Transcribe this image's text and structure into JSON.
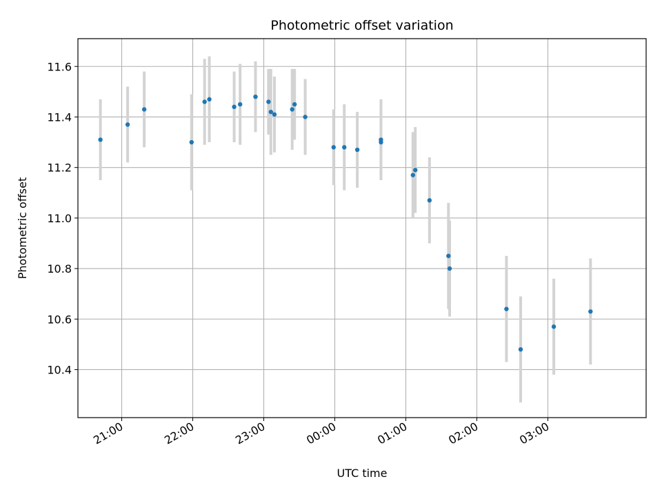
{
  "chart_data": {
    "type": "scatter",
    "title": "Photometric offset variation",
    "xlabel": "UTC time",
    "ylabel": "Photometric offset",
    "x_is_time": true,
    "xlim": [
      "20:23",
      "04:23"
    ],
    "ylim": [
      10.21,
      11.71
    ],
    "xticks": [
      "21:00",
      "22:00",
      "23:00",
      "00:00",
      "01:00",
      "02:00",
      "03:00"
    ],
    "yticks": [
      10.4,
      10.6,
      10.8,
      11.0,
      11.2,
      11.4,
      11.6
    ],
    "grid": true,
    "marker_color": "#1f77b4",
    "errorbar_color": "#d3d3d3",
    "points": [
      {
        "x": "20:42",
        "y": 11.31,
        "err": 0.16
      },
      {
        "x": "21:05",
        "y": 11.37,
        "err": 0.15
      },
      {
        "x": "21:19",
        "y": 11.43,
        "err": 0.15
      },
      {
        "x": "21:59",
        "y": 11.3,
        "err": 0.19
      },
      {
        "x": "22:10",
        "y": 11.46,
        "err": 0.17
      },
      {
        "x": "22:14",
        "y": 11.47,
        "err": 0.17
      },
      {
        "x": "22:35",
        "y": 11.44,
        "err": 0.14
      },
      {
        "x": "22:40",
        "y": 11.45,
        "err": 0.16
      },
      {
        "x": "22:53",
        "y": 11.48,
        "err": 0.14
      },
      {
        "x": "23:04",
        "y": 11.46,
        "err": 0.13
      },
      {
        "x": "23:06",
        "y": 11.42,
        "err": 0.17
      },
      {
        "x": "23:09",
        "y": 11.41,
        "err": 0.15
      },
      {
        "x": "23:24",
        "y": 11.43,
        "err": 0.16
      },
      {
        "x": "23:26",
        "y": 11.45,
        "err": 0.14
      },
      {
        "x": "23:35",
        "y": 11.4,
        "err": 0.15
      },
      {
        "x": "23:59",
        "y": 11.28,
        "err": 0.15
      },
      {
        "x": "00:08",
        "y": 11.28,
        "err": 0.17
      },
      {
        "x": "00:19",
        "y": 11.27,
        "err": 0.15
      },
      {
        "x": "00:39",
        "y": 11.31,
        "err": 0.16
      },
      {
        "x": "00:39",
        "y": 11.3,
        "err": 0.15
      },
      {
        "x": "01:06",
        "y": 11.17,
        "err": 0.17
      },
      {
        "x": "01:08",
        "y": 11.19,
        "err": 0.17
      },
      {
        "x": "01:20",
        "y": 11.07,
        "err": 0.17
      },
      {
        "x": "01:36",
        "y": 10.85,
        "err": 0.21
      },
      {
        "x": "01:37",
        "y": 10.8,
        "err": 0.19
      },
      {
        "x": "02:25",
        "y": 10.64,
        "err": 0.21
      },
      {
        "x": "02:37",
        "y": 10.48,
        "err": 0.21
      },
      {
        "x": "03:05",
        "y": 10.57,
        "err": 0.19
      },
      {
        "x": "03:36",
        "y": 10.63,
        "err": 0.21
      }
    ]
  }
}
